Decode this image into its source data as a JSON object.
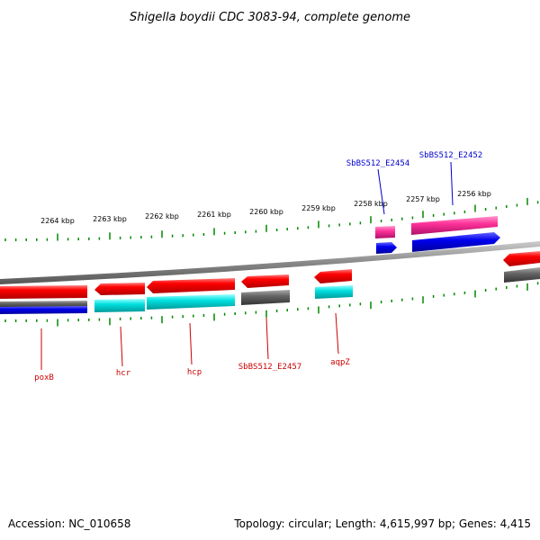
{
  "title": "Shigella boydii CDC 3083-94, complete genome",
  "footer": {
    "accession": "Accession: NC_010658",
    "summary": "Topology: circular; Length: 4,615,997 bp; Genes: 4,415"
  },
  "scale_labels": [
    "2264 kbp",
    "2263 kbp",
    "2262 kbp",
    "2261 kbp",
    "2260 kbp",
    "2259 kbp",
    "2258 kbp",
    "2257 kbp",
    "2256 kbp"
  ],
  "genes_reverse": [
    "poxB",
    "hcr",
    "hcp",
    "SbBS512_E2457",
    "aqpZ"
  ],
  "genes_forward": [
    "SbBS512_E2454",
    "SbBS512_E2452"
  ],
  "colors": {
    "cds_red": "#ff0000",
    "rna_cyan": "#00cccc",
    "blue": "#0000ee",
    "pink": "#ff3399",
    "gray": "#666666",
    "tick_green": "#008800",
    "label_red": "#cc0000",
    "label_blue": "#0000cc"
  }
}
